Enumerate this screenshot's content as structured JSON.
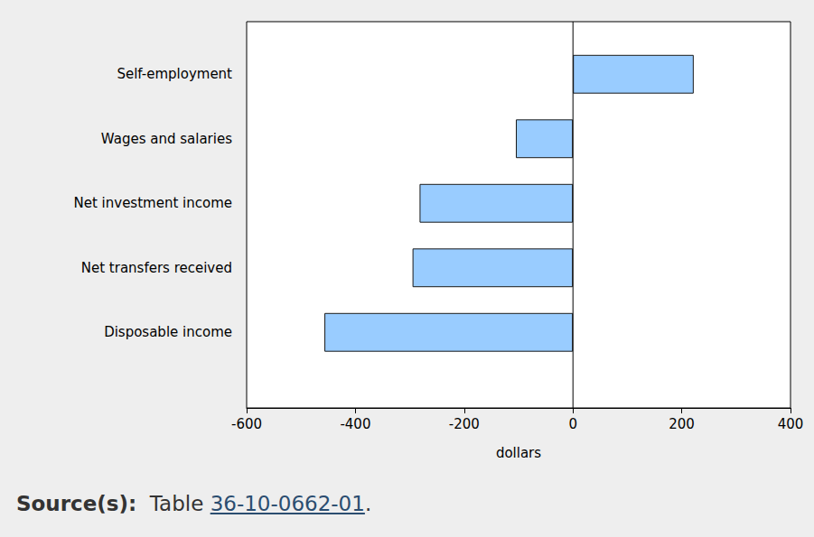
{
  "chart_data": {
    "type": "bar",
    "orientation": "horizontal",
    "categories": [
      "Self-employment",
      "Wages and salaries",
      "Net investment income",
      "Net transfers received",
      "Disposable income"
    ],
    "values": [
      222,
      -105,
      -282,
      -295,
      -457
    ],
    "color": "#99ccff",
    "x_label": "dollars",
    "xlim": [
      -600,
      400
    ],
    "xticks": [
      -600,
      -400,
      -200,
      0,
      200,
      400
    ],
    "grid": false,
    "data_labels": false,
    "source": {
      "label": "Source(s):",
      "text": "Table ",
      "link": "36-10-0662-01",
      "end": "."
    }
  }
}
